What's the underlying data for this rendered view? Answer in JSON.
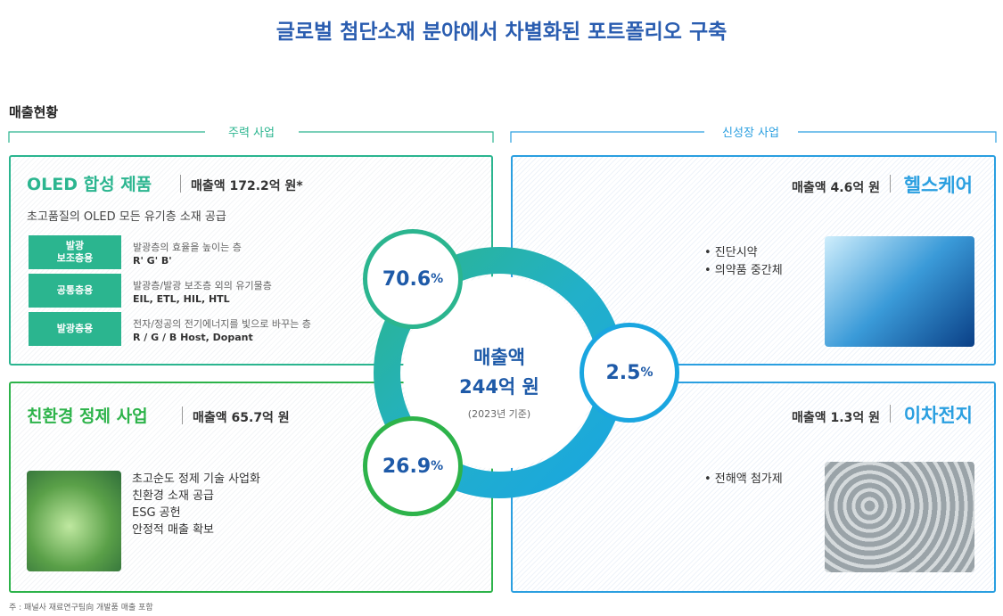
{
  "header": {
    "title": "글로벌 첨단소재 분야에서 차별화된 포트폴리오 구축",
    "section": "매출현황"
  },
  "groups": [
    {
      "label": "주력 사업"
    },
    {
      "label": "신성장 사업"
    }
  ],
  "center": {
    "label": "매출액",
    "total": "244억 원",
    "note": "(2023년 기준)"
  },
  "segments": [
    {
      "name": "OLED 합성 제품",
      "sales": "매출액 172.2억 원*",
      "share": "70.6",
      "unit": "%",
      "desc": "초고품질의 OLED 모든 유기층 소재 공급",
      "rows": [
        {
          "tag": "발광\n보조층용",
          "text": "발광층의 효율을 높이는 층",
          "detail": "R' G' B'"
        },
        {
          "tag": "공통층용",
          "text": "발광층/발광 보조층 외의 유기물층",
          "detail": "EIL, ETL, HIL, HTL"
        },
        {
          "tag": "발광층용",
          "text": "전자/정공의 전기에너지를 빛으로 바꾸는 층",
          "detail": "R / G / B Host, Dopant"
        }
      ]
    },
    {
      "name": "친환경 정제 사업",
      "sales": "매출액 65.7억 원",
      "share": "26.9",
      "unit": "%",
      "bullets": [
        "초고순도 정제 기술 사업화",
        "친환경 소재 공급",
        "ESG 공헌",
        "안정적 매출 확보"
      ]
    },
    {
      "name": "헬스케어",
      "sales": "매출액 4.6억 원",
      "share": "2.5",
      "unit": "%",
      "bullets": [
        "• 진단시약",
        "• 의약품 중간체"
      ]
    },
    {
      "name": "이차전지",
      "sales": "매출액 1.3억 원",
      "bullets": [
        "• 전해액 첨가제"
      ]
    }
  ],
  "footnote": "주 : 패널사 재료연구팀向 개발품 매출 포함"
}
